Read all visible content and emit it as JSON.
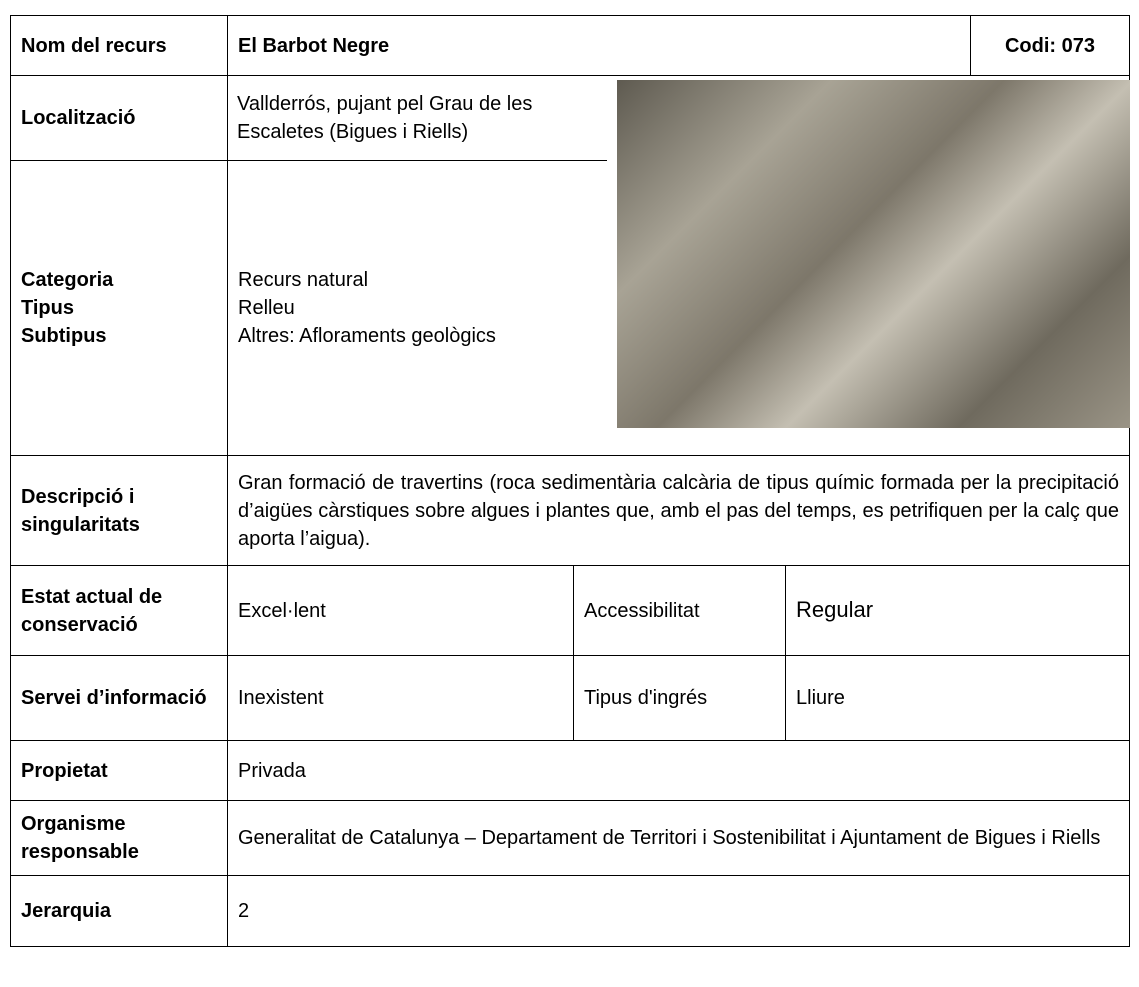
{
  "header": {
    "label": "Nom del recurs",
    "name": "El Barbot Negre",
    "code": "Codi: 073"
  },
  "location": {
    "label": "Localització",
    "value": "Vallderrós, pujant pel Grau de les Escaletes (Bigues i Riells)"
  },
  "classification": {
    "labels": [
      "Categoria",
      "Tipus",
      "Subtipus"
    ],
    "values": [
      "Recurs natural",
      "Relleu",
      "Altres: Afloraments geològics"
    ]
  },
  "description": {
    "label": "Descripció i singularitats",
    "value": "Gran formació de travertins (roca sedimentària calcària de tipus químic formada per la precipitació d’aigües càrstiques sobre algues i plantes que, amb el pas del temps, es petrifiquen per la calç que aporta l’aigua)."
  },
  "conservation": {
    "label": "Estat actual de conservació",
    "value": "Excel·lent",
    "label2": "Accessibilitat",
    "value2": "Regular"
  },
  "information": {
    "label": "Servei d’informació",
    "value": "Inexistent",
    "label2": "Tipus d'ingrés",
    "value2": "Lliure"
  },
  "property": {
    "label": "Propietat",
    "value": "Privada"
  },
  "organism": {
    "label": "Organisme responsable",
    "value": "Generalitat de Catalunya – Departament de Territori i Sostenibilitat i Ajuntament de Bigues i Riells"
  },
  "hierarchy": {
    "label": "Jerarquia",
    "value": "2"
  }
}
